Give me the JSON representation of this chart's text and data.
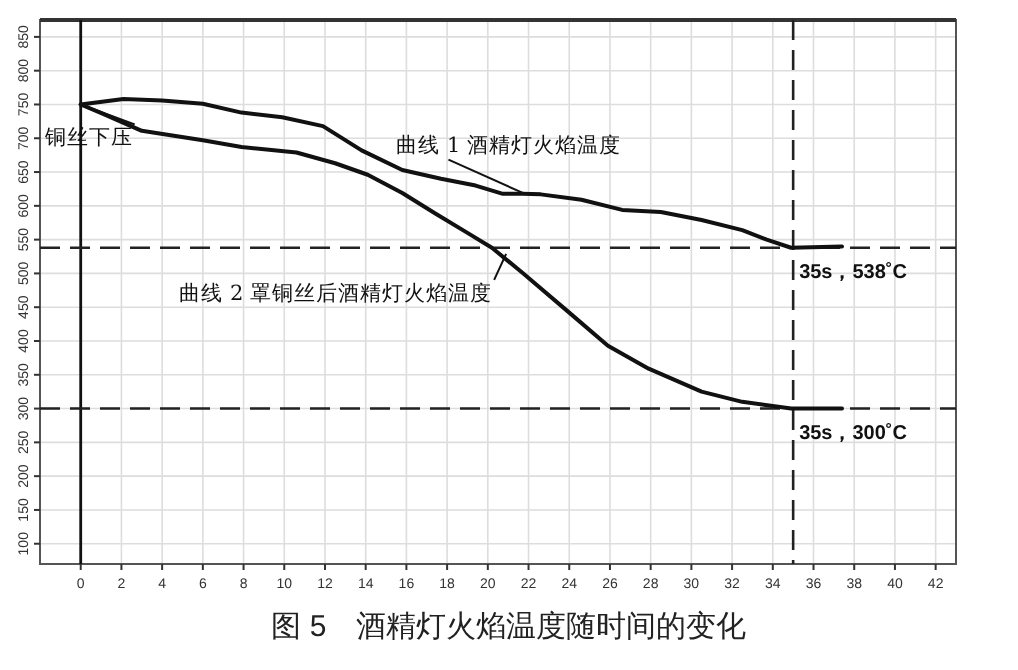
{
  "chart_data": {
    "type": "line",
    "title": "图 5　酒精灯火焰温度随时间的变化",
    "xlim": [
      -2,
      43
    ],
    "ylim": [
      70,
      875
    ],
    "xticks": [
      0,
      2,
      4,
      6,
      8,
      10,
      12,
      14,
      16,
      18,
      20,
      22,
      24,
      26,
      28,
      30,
      32,
      34,
      36,
      38,
      40,
      42
    ],
    "yticks": [
      100,
      150,
      200,
      250,
      300,
      350,
      400,
      450,
      500,
      550,
      600,
      650,
      700,
      750,
      800,
      850
    ],
    "grid": true,
    "marker": "none",
    "line_style": "solid",
    "series": [
      {
        "color": "#111111",
        "x": [
          0,
          2.1,
          4,
          6,
          7.9,
          9.9,
          11.9,
          13.8,
          15.8,
          17.7,
          19.4,
          20.7,
          21.7,
          22.6,
          24.6,
          26.6,
          28.5,
          30.5,
          32.5,
          33.7,
          34.9,
          37.4
        ],
        "values": [
          750,
          758,
          756,
          751,
          738,
          731,
          718,
          682,
          653,
          640,
          630,
          618,
          618,
          617,
          609,
          594,
          591,
          579,
          564,
          550,
          538,
          540
        ]
      },
      {
        "color": "#111111",
        "x": [
          0,
          1.1,
          3,
          6,
          7.9,
          10.6,
          12.5,
          14.1,
          15.8,
          17.4,
          19,
          20.2,
          21.7,
          24,
          25.9,
          27.9,
          30.5,
          32.5,
          34.9,
          37.4
        ],
        "values": [
          750,
          736,
          711,
          697,
          687,
          679,
          663,
          646,
          619,
          589,
          560,
          538,
          501,
          442,
          393,
          359,
          325,
          310,
          300,
          300
        ]
      }
    ],
    "ref_lines": [
      {
        "axis": "x",
        "value": 0,
        "line_style": "solid",
        "color": "#111111"
      },
      {
        "axis": "y",
        "value": 538,
        "line_style": "dashed",
        "color": "#222222"
      },
      {
        "axis": "y",
        "value": 300,
        "line_style": "dashed",
        "color": "#222222"
      },
      {
        "axis": "x",
        "value": 35,
        "line_style": "dashed",
        "color": "#222222"
      }
    ],
    "annotations": [
      {
        "text": "铜丝下压",
        "x": 0,
        "y": 750
      },
      {
        "text": "曲线 1 酒精灯火焰温度",
        "x": 21.8,
        "y": 618
      },
      {
        "text": "曲线 2 罩铜丝后酒精灯火焰温度",
        "x": 20.9,
        "y": 529
      },
      {
        "text": "35s，538˚C",
        "x": 35,
        "y": 538
      },
      {
        "text": "35s，300˚C",
        "x": 35,
        "y": 300
      }
    ]
  }
}
